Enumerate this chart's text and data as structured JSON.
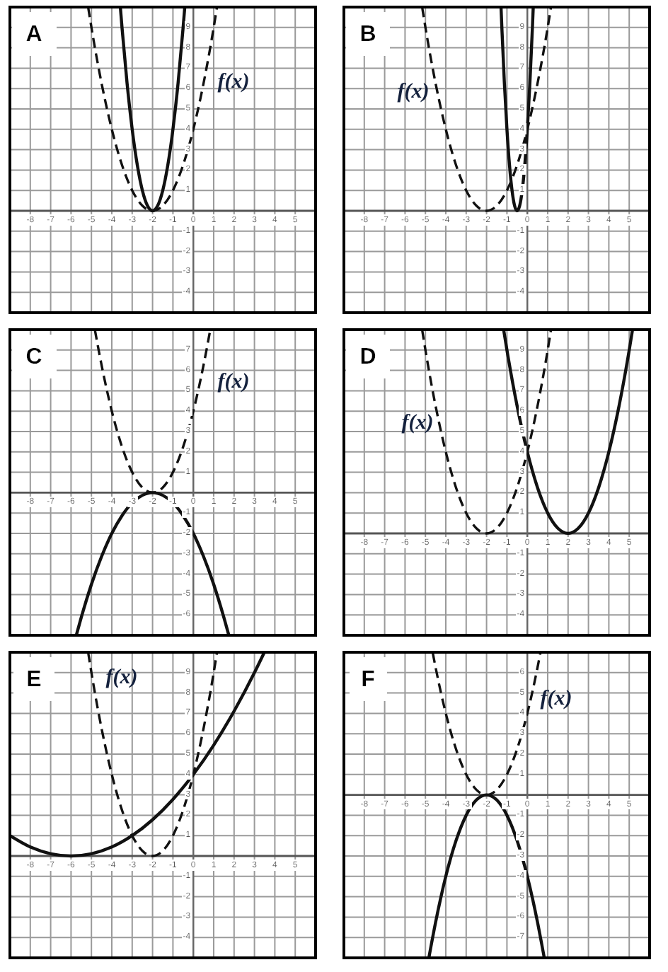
{
  "chart_data": [
    {
      "type": "line",
      "title": "A",
      "xlim": [
        -9,
        6
      ],
      "ylim": [
        -5,
        10
      ],
      "xticks": [
        -8,
        -7,
        -6,
        -5,
        -4,
        -3,
        -2,
        -1,
        0,
        1,
        2,
        3,
        4,
        5
      ],
      "yticks": [
        -4,
        -3,
        -2,
        -1,
        1,
        2,
        3,
        4,
        5,
        6,
        7,
        8,
        9
      ],
      "grid": true,
      "series": [
        {
          "name": "f(x)",
          "color": "#111111",
          "line_style": "dashed",
          "x": [
            -5.16,
            -5,
            -4.5,
            -4,
            -3.5,
            -3,
            -2.5,
            -2,
            -1.5,
            -1,
            -0.5,
            0,
            0.5,
            1,
            1.16
          ],
          "values": [
            9.99,
            9,
            6.25,
            4,
            2.25,
            1,
            0.25,
            0,
            0.25,
            1,
            2.25,
            4,
            6.25,
            9,
            9.99
          ]
        },
        {
          "color": "#111111",
          "line_style": "solid",
          "x": [
            -3.58,
            -3.5,
            -3.25,
            -3,
            -2.75,
            -2.5,
            -2.25,
            -2,
            -1.75,
            -1.5,
            -1.25,
            -1,
            -0.75,
            -0.5,
            -0.42
          ],
          "values": [
            9.99,
            9,
            6.25,
            4,
            2.25,
            1,
            0.25,
            0,
            0.25,
            1,
            2.25,
            4,
            6.25,
            9,
            9.99
          ]
        }
      ]
    },
    {
      "type": "line",
      "title": "B",
      "xlim": [
        -9,
        6
      ],
      "ylim": [
        -5,
        10
      ],
      "xticks": [
        -8,
        -7,
        -6,
        -5,
        -4,
        -3,
        -2,
        -1,
        0,
        1,
        2,
        3,
        4,
        5
      ],
      "yticks": [
        -4,
        -3,
        -2,
        -1,
        1,
        2,
        3,
        4,
        5,
        6,
        7,
        8,
        9
      ],
      "grid": true,
      "series": [
        {
          "name": "f(x)",
          "color": "#111111",
          "line_style": "dashed",
          "x": [
            -5.16,
            -5,
            -4.5,
            -4,
            -3.5,
            -3,
            -2.5,
            -2,
            -1.5,
            -1,
            -0.5,
            0,
            0.5,
            1,
            1.16
          ],
          "values": [
            9.99,
            9,
            6.25,
            4,
            2.25,
            1,
            0.25,
            0,
            0.25,
            1,
            2.25,
            4,
            6.25,
            9,
            9.99
          ]
        },
        {
          "color": "#111111",
          "line_style": "solid",
          "x": [
            -1.29,
            -1.25,
            -1.125,
            -1,
            -0.875,
            -0.75,
            -0.625,
            -0.5,
            -0.375,
            -0.25,
            -0.125,
            0,
            0.125,
            0.25,
            0.29
          ],
          "values": [
            9.99,
            9,
            6.25,
            4,
            2.25,
            1,
            0.25,
            0,
            0.25,
            1,
            2.25,
            4,
            6.25,
            9,
            9.99
          ]
        }
      ]
    },
    {
      "type": "line",
      "title": "C",
      "xlim": [
        -9,
        6
      ],
      "ylim": [
        -7,
        8
      ],
      "xticks": [
        -8,
        -7,
        -6,
        -5,
        -4,
        -3,
        -2,
        -1,
        0,
        1,
        2,
        3,
        4,
        5
      ],
      "yticks": [
        -6,
        -5,
        -4,
        -3,
        -2,
        -1,
        1,
        2,
        3,
        4,
        5,
        6,
        7
      ],
      "grid": true,
      "series": [
        {
          "name": "f(x)",
          "color": "#111111",
          "line_style": "dashed",
          "x": [
            -4.83,
            -4.5,
            -4,
            -3.5,
            -3,
            -2.5,
            -2,
            -1.5,
            -1,
            -0.5,
            0,
            0.5,
            0.83
          ],
          "values": [
            7.99,
            6.25,
            4,
            2.25,
            1,
            0.25,
            0,
            0.25,
            1,
            2.25,
            4,
            6.25,
            7.99
          ]
        },
        {
          "color": "#111111",
          "line_style": "solid",
          "x": [
            -5.74,
            -5.5,
            -5,
            -4.5,
            -4,
            -3.5,
            -3,
            -2.5,
            -2,
            -1.5,
            -1,
            -0.5,
            0,
            0.5,
            1,
            1.5,
            1.74
          ],
          "values": [
            -6.99,
            -6.13,
            -4.5,
            -3.13,
            -2,
            -1.13,
            -0.5,
            -0.13,
            0,
            -0.13,
            -0.5,
            -1.13,
            -2,
            -3.13,
            -4.5,
            -6.13,
            -6.99
          ]
        }
      ]
    },
    {
      "type": "line",
      "title": "D",
      "xlim": [
        -9,
        6
      ],
      "ylim": [
        -5,
        10
      ],
      "xticks": [
        -8,
        -7,
        -6,
        -5,
        -4,
        -3,
        -2,
        -1,
        0,
        1,
        2,
        3,
        4,
        5
      ],
      "yticks": [
        -4,
        -3,
        -2,
        -1,
        1,
        2,
        3,
        4,
        5,
        6,
        7,
        8,
        9
      ],
      "grid": true,
      "series": [
        {
          "name": "f(x)",
          "color": "#111111",
          "line_style": "dashed",
          "x": [
            -5.16,
            -5,
            -4.5,
            -4,
            -3.5,
            -3,
            -2.5,
            -2,
            -1.5,
            -1,
            -0.5,
            0,
            0.5,
            1,
            1.16
          ],
          "values": [
            9.99,
            9,
            6.25,
            4,
            2.25,
            1,
            0.25,
            0,
            0.25,
            1,
            2.25,
            4,
            6.25,
            9,
            9.99
          ]
        },
        {
          "color": "#111111",
          "line_style": "solid",
          "x": [
            -1.16,
            -1,
            -0.5,
            0,
            0.5,
            1,
            1.5,
            2,
            2.5,
            3,
            3.5,
            4,
            4.5,
            5,
            5.16
          ],
          "values": [
            9.99,
            9,
            6.25,
            4,
            2.25,
            1,
            0.25,
            0,
            0.25,
            1,
            2.25,
            4,
            6.25,
            9,
            9.99
          ]
        }
      ]
    },
    {
      "type": "line",
      "title": "E",
      "xlim": [
        -9,
        6
      ],
      "ylim": [
        -5,
        10
      ],
      "xticks": [
        -8,
        -7,
        -6,
        -5,
        -4,
        -3,
        -2,
        -1,
        0,
        1,
        2,
        3,
        4,
        5
      ],
      "yticks": [
        -4,
        -3,
        -2,
        -1,
        1,
        2,
        3,
        4,
        5,
        6,
        7,
        8,
        9
      ],
      "grid": true,
      "series": [
        {
          "name": "f(x)",
          "color": "#111111",
          "line_style": "dashed",
          "x": [
            -5.16,
            -5,
            -4.5,
            -4,
            -3.5,
            -3,
            -2.5,
            -2,
            -1.5,
            -1,
            -0.5,
            0,
            0.5,
            1,
            1.16
          ],
          "values": [
            9.99,
            9,
            6.25,
            4,
            2.25,
            1,
            0.25,
            0,
            0.25,
            1,
            2.25,
            4,
            6.25,
            9,
            9.99
          ]
        },
        {
          "color": "#111111",
          "line_style": "solid",
          "x": [
            -9,
            -8,
            -7,
            -6,
            -5,
            -4,
            -3,
            -2,
            -1,
            0,
            1,
            2,
            3,
            3.48
          ],
          "values": [
            1,
            0.44,
            0.11,
            0,
            0.11,
            0.44,
            1,
            1.78,
            2.78,
            4,
            5.44,
            7.11,
            9,
            9.99
          ]
        }
      ]
    },
    {
      "type": "line",
      "title": "F",
      "xlim": [
        -9,
        6
      ],
      "ylim": [
        -8,
        7
      ],
      "xticks": [
        -8,
        -7,
        -6,
        -5,
        -4,
        -3,
        -2,
        -1,
        0,
        1,
        2,
        3,
        4,
        5
      ],
      "yticks": [
        -7,
        -6,
        -5,
        -4,
        -3,
        -2,
        -1,
        1,
        2,
        3,
        4,
        5,
        6
      ],
      "grid": true,
      "series": [
        {
          "name": "f(x)",
          "color": "#111111",
          "line_style": "dashed",
          "x": [
            -4.64,
            -4.5,
            -4,
            -3.5,
            -3,
            -2.5,
            -2,
            -1.5,
            -1,
            -0.5,
            0,
            0.5,
            0.64
          ],
          "values": [
            6.97,
            6.25,
            4,
            2.25,
            1,
            0.25,
            0,
            0.25,
            1,
            2.25,
            4,
            6.25,
            6.97
          ]
        },
        {
          "color": "#111111",
          "line_style": "solid",
          "x": [
            -4.83,
            -4.5,
            -4,
            -3.5,
            -3,
            -2.5,
            -2,
            -1.5,
            -1,
            -0.5,
            0,
            0.5,
            0.83
          ],
          "values": [
            -7.99,
            -6.25,
            -4,
            -2.25,
            -1,
            -0.25,
            0,
            -0.25,
            -1,
            -2.25,
            -4,
            -6.25,
            -7.99
          ]
        }
      ]
    }
  ]
}
